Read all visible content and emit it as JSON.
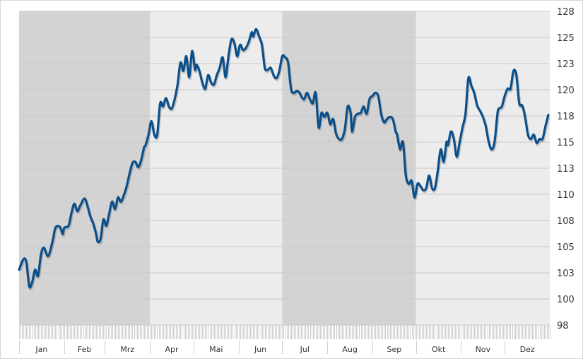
{
  "chart_data": {
    "type": "line",
    "title": "",
    "xlabel": "",
    "ylabel": "",
    "ylim": [
      97.5,
      127.5
    ],
    "y_ticks": [
      {
        "value": 127.5,
        "label": "128"
      },
      {
        "value": 125,
        "label": "125"
      },
      {
        "value": 122.5,
        "label": "123"
      },
      {
        "value": 120,
        "label": "120"
      },
      {
        "value": 117.5,
        "label": "118"
      },
      {
        "value": 115,
        "label": "115"
      },
      {
        "value": 112.5,
        "label": "113"
      },
      {
        "value": 110,
        "label": "110"
      },
      {
        "value": 107.5,
        "label": "108"
      },
      {
        "value": 105,
        "label": "105"
      },
      {
        "value": 102.5,
        "label": "103"
      },
      {
        "value": 100,
        "label": "100"
      },
      {
        "value": 97.5,
        "label": "98"
      }
    ],
    "y_axis_position": "right",
    "x_months": [
      "Jan",
      "Feb",
      "Mrz",
      "Apr",
      "Mai",
      "Jun",
      "Jul",
      "Aug",
      "Sep",
      "Okt",
      "Nov",
      "Dez"
    ],
    "quarter_bands": [
      "dark",
      "light",
      "dark",
      "light"
    ],
    "colors": {
      "line": "#0b4f8a",
      "band_dark": "#d3d3d3",
      "band_light": "#ececec",
      "grid": "#c8c8c8"
    },
    "grid": true,
    "legend": "none",
    "series": [
      {
        "points": [
          [
            "01-01",
            102.8
          ],
          [
            "01-04",
            103.8
          ],
          [
            "01-06",
            103.5
          ],
          [
            "01-08",
            101.2
          ],
          [
            "01-10",
            101.6
          ],
          [
            "01-12",
            102.8
          ],
          [
            "01-14",
            102.2
          ],
          [
            "01-16",
            104.2
          ],
          [
            "01-18",
            104.9
          ],
          [
            "01-21",
            104.1
          ],
          [
            "01-24",
            105.5
          ],
          [
            "01-26",
            106.8
          ],
          [
            "01-29",
            106.9
          ],
          [
            "01-31",
            106.2
          ],
          [
            "02-01",
            106.8
          ],
          [
            "02-04",
            107.0
          ],
          [
            "02-06",
            108.2
          ],
          [
            "02-08",
            109.1
          ],
          [
            "02-10",
            108.4
          ],
          [
            "02-12",
            108.9
          ],
          [
            "02-15",
            109.6
          ],
          [
            "02-17",
            108.9
          ],
          [
            "02-19",
            107.9
          ],
          [
            "02-21",
            107.2
          ],
          [
            "02-23",
            106.2
          ],
          [
            "02-24",
            105.5
          ],
          [
            "02-26",
            105.7
          ],
          [
            "02-28",
            107.6
          ],
          [
            "03-02",
            107.0
          ],
          [
            "03-04",
            108.2
          ],
          [
            "03-06",
            109.3
          ],
          [
            "03-08",
            108.6
          ],
          [
            "03-10",
            109.7
          ],
          [
            "03-12",
            109.3
          ],
          [
            "03-14",
            109.9
          ],
          [
            "03-16",
            110.8
          ],
          [
            "03-18",
            112.0
          ],
          [
            "03-20",
            113.0
          ],
          [
            "03-22",
            113.1
          ],
          [
            "03-24",
            112.6
          ],
          [
            "03-26",
            113.3
          ],
          [
            "03-28",
            114.5
          ],
          [
            "03-29",
            114.7
          ],
          [
            "03-31",
            115.7
          ],
          [
            "04-02",
            117.0
          ],
          [
            "04-04",
            115.7
          ],
          [
            "04-06",
            115.7
          ],
          [
            "04-08",
            118.7
          ],
          [
            "04-10",
            118.4
          ],
          [
            "04-12",
            119.2
          ],
          [
            "04-14",
            118.4
          ],
          [
            "04-16",
            118.2
          ],
          [
            "04-18",
            119.1
          ],
          [
            "04-20",
            120.5
          ],
          [
            "04-22",
            122.6
          ],
          [
            "04-24",
            121.8
          ],
          [
            "04-26",
            123.2
          ],
          [
            "04-28",
            121.2
          ],
          [
            "04-30",
            123.7
          ],
          [
            "05-02",
            121.9
          ],
          [
            "05-03",
            122.4
          ],
          [
            "05-05",
            121.8
          ],
          [
            "05-07",
            120.7
          ],
          [
            "05-09",
            120.1
          ],
          [
            "05-11",
            121.4
          ],
          [
            "05-13",
            120.7
          ],
          [
            "05-15",
            120.5
          ],
          [
            "05-17",
            121.4
          ],
          [
            "05-19",
            122.1
          ],
          [
            "05-21",
            123.1
          ],
          [
            "05-23",
            121.2
          ],
          [
            "05-25",
            123.2
          ],
          [
            "05-27",
            124.8
          ],
          [
            "05-29",
            124.5
          ],
          [
            "05-31",
            123.2
          ],
          [
            "06-02",
            124.3
          ],
          [
            "06-04",
            123.8
          ],
          [
            "06-06",
            124.0
          ],
          [
            "06-08",
            124.6
          ],
          [
            "06-10",
            125.5
          ],
          [
            "06-11",
            125.1
          ],
          [
            "06-13",
            125.8
          ],
          [
            "06-15",
            125.1
          ],
          [
            "06-17",
            124.3
          ],
          [
            "06-19",
            122.1
          ],
          [
            "06-21",
            121.9
          ],
          [
            "06-23",
            122.1
          ],
          [
            "06-25",
            121.4
          ],
          [
            "06-27",
            121.1
          ],
          [
            "06-29",
            121.8
          ],
          [
            "07-01",
            123.2
          ],
          [
            "07-03",
            123.1
          ],
          [
            "07-05",
            122.6
          ],
          [
            "07-07",
            120.1
          ],
          [
            "07-09",
            119.7
          ],
          [
            "07-11",
            119.9
          ],
          [
            "07-13",
            119.7
          ],
          [
            "07-14",
            119.4
          ],
          [
            "07-16",
            119.1
          ],
          [
            "07-18",
            119.7
          ],
          [
            "07-20",
            119.1
          ],
          [
            "07-22",
            118.7
          ],
          [
            "07-24",
            119.7
          ],
          [
            "07-26",
            116.4
          ],
          [
            "07-28",
            117.8
          ],
          [
            "07-30",
            117.4
          ],
          [
            "08-01",
            117.8
          ],
          [
            "08-03",
            116.7
          ],
          [
            "08-05",
            117.2
          ],
          [
            "08-07",
            115.8
          ],
          [
            "08-09",
            115.3
          ],
          [
            "08-11",
            115.3
          ],
          [
            "08-13",
            116.2
          ],
          [
            "08-15",
            118.4
          ],
          [
            "08-17",
            117.8
          ],
          [
            "08-18",
            116.0
          ],
          [
            "08-20",
            117.4
          ],
          [
            "08-22",
            117.7
          ],
          [
            "08-24",
            117.8
          ],
          [
            "08-26",
            118.4
          ],
          [
            "08-28",
            117.7
          ],
          [
            "08-30",
            119.1
          ],
          [
            "09-01",
            119.4
          ],
          [
            "09-03",
            119.7
          ],
          [
            "09-05",
            119.4
          ],
          [
            "09-07",
            117.7
          ],
          [
            "09-09",
            116.9
          ],
          [
            "09-11",
            117.2
          ],
          [
            "09-13",
            117.4
          ],
          [
            "09-15",
            117.2
          ],
          [
            "09-17",
            116.0
          ],
          [
            "09-18",
            115.7
          ],
          [
            "09-20",
            114.3
          ],
          [
            "09-22",
            115.0
          ],
          [
            "09-24",
            111.8
          ],
          [
            "09-26",
            111.0
          ],
          [
            "09-28",
            111.3
          ],
          [
            "09-30",
            109.7
          ],
          [
            "10-02",
            111.0
          ],
          [
            "10-04",
            110.8
          ],
          [
            "10-06",
            110.4
          ],
          [
            "10-08",
            110.6
          ],
          [
            "10-10",
            111.8
          ],
          [
            "10-12",
            110.6
          ],
          [
            "10-14",
            110.6
          ],
          [
            "10-16",
            112.3
          ],
          [
            "10-18",
            114.3
          ],
          [
            "10-20",
            113.1
          ],
          [
            "10-22",
            115.0
          ],
          [
            "10-23",
            114.7
          ],
          [
            "10-25",
            116.0
          ],
          [
            "10-27",
            115.3
          ],
          [
            "10-29",
            113.6
          ],
          [
            "10-31",
            115.0
          ],
          [
            "11-02",
            116.4
          ],
          [
            "11-04",
            117.7
          ],
          [
            "11-06",
            121.1
          ],
          [
            "11-08",
            120.4
          ],
          [
            "11-10",
            119.7
          ],
          [
            "11-12",
            118.5
          ],
          [
            "11-14",
            118.0
          ],
          [
            "11-16",
            117.4
          ],
          [
            "11-18",
            116.5
          ],
          [
            "11-20",
            115.0
          ],
          [
            "11-22",
            114.3
          ],
          [
            "11-24",
            115.0
          ],
          [
            "11-26",
            117.7
          ],
          [
            "11-27",
            118.2
          ],
          [
            "11-29",
            118.4
          ],
          [
            "12-01",
            119.4
          ],
          [
            "12-03",
            120.1
          ],
          [
            "12-05",
            120.1
          ],
          [
            "12-07",
            121.8
          ],
          [
            "12-09",
            121.4
          ],
          [
            "12-11",
            118.7
          ],
          [
            "12-13",
            118.5
          ],
          [
            "12-15",
            117.4
          ],
          [
            "12-17",
            115.7
          ],
          [
            "12-19",
            115.3
          ],
          [
            "12-21",
            115.7
          ],
          [
            "12-23",
            114.9
          ],
          [
            "12-25",
            115.3
          ],
          [
            "12-27",
            115.3
          ],
          [
            "12-29",
            116.5
          ],
          [
            "12-31",
            117.6
          ]
        ]
      }
    ]
  }
}
